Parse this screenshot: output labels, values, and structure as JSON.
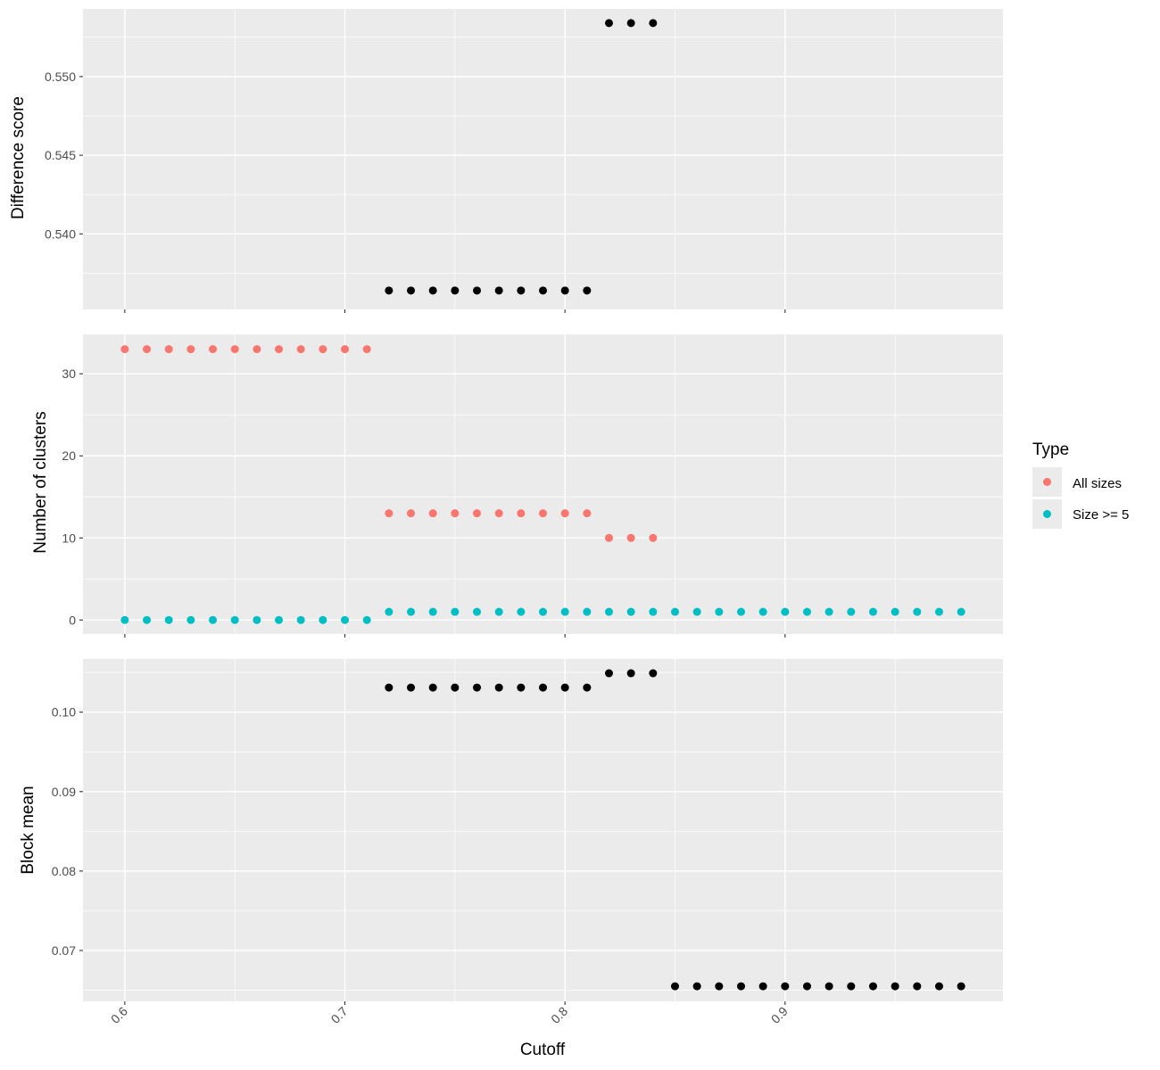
{
  "chart_data": {
    "type": "scatter",
    "xlabel": "Cutoff",
    "xlim": [
      0.581,
      0.999
    ],
    "x_ticks": [
      "0.6",
      "0.7",
      "0.8",
      "0.9"
    ],
    "legend": {
      "title": "Type",
      "position": "right",
      "entries": [
        {
          "label": "All sizes",
          "color": "#F8766D"
        },
        {
          "label": "Size >= 5",
          "color": "#00BFC4"
        }
      ]
    },
    "panels": [
      {
        "ylabel": "Difference score",
        "ylim": [
          0.5352,
          0.5543
        ],
        "y_ticks": [
          "0.540",
          "0.545",
          "0.550"
        ],
        "grid": true,
        "series": [
          {
            "color": "#000000",
            "x": [
              0.72,
              0.73,
              0.74,
              0.75,
              0.76,
              0.77,
              0.78,
              0.79,
              0.8,
              0.81,
              0.82,
              0.83,
              0.84
            ],
            "y": [
              0.5364,
              0.5364,
              0.5364,
              0.5364,
              0.5364,
              0.5364,
              0.5364,
              0.5364,
              0.5364,
              0.5364,
              0.5534,
              0.5534,
              0.5534
            ]
          }
        ]
      },
      {
        "ylabel": "Number of clusters",
        "ylim": [
          -1.7,
          34.8
        ],
        "y_ticks": [
          "0",
          "10",
          "20",
          "30"
        ],
        "grid": true,
        "series": [
          {
            "name": "All sizes",
            "color": "#F8766D",
            "x": [
              0.6,
              0.61,
              0.62,
              0.63,
              0.64,
              0.65,
              0.66,
              0.67,
              0.68,
              0.69,
              0.7,
              0.71,
              0.72,
              0.73,
              0.74,
              0.75,
              0.76,
              0.77,
              0.78,
              0.79,
              0.8,
              0.81,
              0.82,
              0.83,
              0.84
            ],
            "y": [
              33,
              33,
              33,
              33,
              33,
              33,
              33,
              33,
              33,
              33,
              33,
              33,
              13,
              13,
              13,
              13,
              13,
              13,
              13,
              13,
              13,
              13,
              10,
              10,
              10
            ]
          },
          {
            "name": "Size >= 5",
            "color": "#00BFC4",
            "x": [
              0.6,
              0.61,
              0.62,
              0.63,
              0.64,
              0.65,
              0.66,
              0.67,
              0.68,
              0.69,
              0.7,
              0.71,
              0.72,
              0.73,
              0.74,
              0.75,
              0.76,
              0.77,
              0.78,
              0.79,
              0.8,
              0.81,
              0.82,
              0.83,
              0.84,
              0.85,
              0.86,
              0.87,
              0.88,
              0.89,
              0.9,
              0.91,
              0.92,
              0.93,
              0.94,
              0.95,
              0.96,
              0.97,
              0.98
            ],
            "y": [
              0,
              0,
              0,
              0,
              0,
              0,
              0,
              0,
              0,
              0,
              0,
              0,
              1,
              1,
              1,
              1,
              1,
              1,
              1,
              1,
              1,
              1,
              1,
              1,
              1,
              1,
              1,
              1,
              1,
              1,
              1,
              1,
              1,
              1,
              1,
              1,
              1,
              1,
              1
            ]
          }
        ]
      },
      {
        "ylabel": "Block mean",
        "ylim": [
          0.0636,
          0.1067
        ],
        "y_ticks": [
          "0.07",
          "0.08",
          "0.09",
          "0.10"
        ],
        "grid": true,
        "series": [
          {
            "color": "#000000",
            "x": [
              0.72,
              0.73,
              0.74,
              0.75,
              0.76,
              0.77,
              0.78,
              0.79,
              0.8,
              0.81,
              0.82,
              0.83,
              0.84,
              0.85,
              0.86,
              0.87,
              0.88,
              0.89,
              0.9,
              0.91,
              0.92,
              0.93,
              0.94,
              0.95,
              0.96,
              0.97,
              0.98
            ],
            "y": [
              0.1031,
              0.1031,
              0.1031,
              0.1031,
              0.1031,
              0.1031,
              0.1031,
              0.1031,
              0.1031,
              0.1031,
              0.1049,
              0.1049,
              0.1049,
              0.0655,
              0.0655,
              0.0655,
              0.0655,
              0.0655,
              0.0655,
              0.0655,
              0.0655,
              0.0655,
              0.0655,
              0.0655,
              0.0655,
              0.0655,
              0.0655
            ]
          }
        ]
      }
    ]
  }
}
